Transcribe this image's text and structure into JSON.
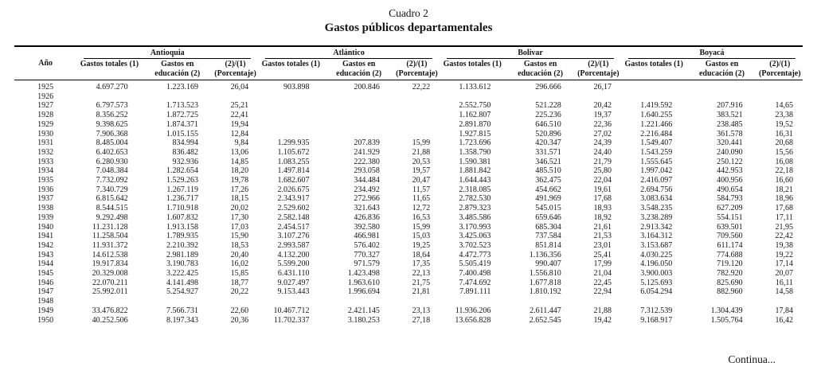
{
  "page": {
    "heading": "Cuadro 2",
    "title": "Gastos públicos departamentales",
    "footer_note": "Continua..."
  },
  "colors": {
    "background": "#ffffff",
    "text": "#141414",
    "rule": "#000000"
  },
  "table": {
    "year_header": "Año",
    "groups": [
      "Antioquia",
      "Atlántico",
      "Bolivar",
      "Boyacá"
    ],
    "subheaders": [
      "Gastos totales (1)",
      "Gastos en educación (2)",
      "(2)/(1) (Porcentaje)"
    ],
    "rows": [
      {
        "year": "1925",
        "values": [
          "4.697.270",
          "1.223.169",
          "26,04",
          "903.898",
          "200.846",
          "22,22",
          "1.133.612",
          "296.666",
          "26,17",
          "",
          "",
          ""
        ]
      },
      {
        "year": "1926",
        "values": [
          "",
          "",
          "",
          "",
          "",
          "",
          "",
          "",
          "",
          "",
          "",
          ""
        ]
      },
      {
        "year": "1927",
        "values": [
          "6.797.573",
          "1.713.523",
          "25,21",
          "",
          "",
          "",
          "2.552.750",
          "521.228",
          "20,42",
          "1.419.592",
          "207.916",
          "14,65"
        ]
      },
      {
        "year": "1928",
        "values": [
          "8.356.252",
          "1.872.725",
          "22,41",
          "",
          "",
          "",
          "1.162.807",
          "225.236",
          "19,37",
          "1.640.255",
          "383.521",
          "23,38"
        ]
      },
      {
        "year": "1929",
        "values": [
          "9.398.625",
          "1.874.371",
          "19,94",
          "",
          "",
          "",
          "2.891.870",
          "646.510",
          "22,36",
          "1.221.466",
          "238.485",
          "19,52"
        ]
      },
      {
        "year": "1930",
        "values": [
          "7.906.368",
          "1.015.155",
          "12,84",
          "",
          "",
          "",
          "1.927.815",
          "520.896",
          "27,02",
          "2.216.484",
          "361.578",
          "16,31"
        ]
      },
      {
        "year": "1931",
        "values": [
          "8.485.004",
          "834.994",
          "9,84",
          "1.299.935",
          "207.839",
          "15,99",
          "1.723.696",
          "420.347",
          "24,39",
          "1.549.407",
          "320.441",
          "20,68"
        ]
      },
      {
        "year": "1932",
        "values": [
          "6.402.653",
          "836.482",
          "13,06",
          "1.105.672",
          "241.929",
          "21,88",
          "1.358.790",
          "331.571",
          "24,40",
          "1.543.259",
          "240.090",
          "15,56"
        ]
      },
      {
        "year": "1933",
        "values": [
          "6.280.930",
          "932.936",
          "14,85",
          "1.083.255",
          "222.380",
          "20,53",
          "1.590.381",
          "346.521",
          "21,79",
          "1.555.645",
          "250.122",
          "16,08"
        ]
      },
      {
        "year": "1934",
        "values": [
          "7.048.384",
          "1.282.654",
          "18,20",
          "1.497.814",
          "293.058",
          "19,57",
          "1.881.842",
          "485.510",
          "25,80",
          "1.997.042",
          "442.953",
          "22,18"
        ]
      },
      {
        "year": "1935",
        "values": [
          "7.732.092",
          "1.529.263",
          "19,78",
          "1.682.607",
          "344.484",
          "20,47",
          "1.644.443",
          "362.475",
          "22,04",
          "2.416.097",
          "400.956",
          "16,60"
        ]
      },
      {
        "year": "1936",
        "values": [
          "7.340.729",
          "1.267.119",
          "17,26",
          "2.026.675",
          "234.492",
          "11,57",
          "2.318.085",
          "454.662",
          "19,61",
          "2.694.756",
          "490.654",
          "18,21"
        ]
      },
      {
        "year": "1937",
        "values": [
          "6.815.642",
          "1.236.717",
          "18,15",
          "2.343.917",
          "272.966",
          "11,65",
          "2.782.530",
          "491.969",
          "17,68",
          "3.083.634",
          "584.793",
          "18,96"
        ]
      },
      {
        "year": "1938",
        "values": [
          "8.544.515",
          "1.710.918",
          "20,02",
          "2.529.602",
          "321.643",
          "12,72",
          "2.879.323",
          "545.015",
          "18,93",
          "3.548.235",
          "627.209",
          "17,68"
        ]
      },
      {
        "year": "1939",
        "values": [
          "9.292.498",
          "1.607.832",
          "17,30",
          "2.582.148",
          "426.836",
          "16,53",
          "3.485.586",
          "659.646",
          "18,92",
          "3.238.289",
          "554.151",
          "17,11"
        ]
      },
      {
        "year": "1940",
        "values": [
          "11.231.128",
          "1.913.158",
          "17,03",
          "2.454.517",
          "392.580",
          "15,99",
          "3.170.993",
          "685.304",
          "21,61",
          "2.913.342",
          "639.501",
          "21,95"
        ]
      },
      {
        "year": "1941",
        "values": [
          "11.258.504",
          "1.789.935",
          "15,90",
          "3.107.276",
          "466.981",
          "15,03",
          "3.425.063",
          "737.584",
          "21,53",
          "3.164.312",
          "709.560",
          "22,42"
        ]
      },
      {
        "year": "1942",
        "values": [
          "11.931.372",
          "2.210.392",
          "18,53",
          "2.993.587",
          "576.402",
          "19,25",
          "3.702.523",
          "851.814",
          "23,01",
          "3.153.687",
          "611.174",
          "19,38"
        ]
      },
      {
        "year": "1943",
        "values": [
          "14.612.538",
          "2.981.189",
          "20,40",
          "4.132.200",
          "770.327",
          "18,64",
          "4.472.773",
          "1.136.356",
          "25,41",
          "4.030.225",
          "774.688",
          "19,22"
        ]
      },
      {
        "year": "1944",
        "values": [
          "19.917.834",
          "3.190.783",
          "16,02",
          "5.599.200",
          "971.579",
          "17,35",
          "5.505.419",
          "990.407",
          "17,99",
          "4.196.050",
          "719.120",
          "17,14"
        ]
      },
      {
        "year": "1945",
        "values": [
          "20.329.008",
          "3.222.425",
          "15,85",
          "6.431.110",
          "1.423.498",
          "22,13",
          "7.400.498",
          "1.556.810",
          "21,04",
          "3.900.003",
          "782.920",
          "20,07"
        ]
      },
      {
        "year": "1946",
        "values": [
          "22.070.211",
          "4.141.498",
          "18,77",
          "9.027.497",
          "1.963.610",
          "21,75",
          "7.474.692",
          "1.677.818",
          "22,45",
          "5.125.693",
          "825.690",
          "16,11"
        ]
      },
      {
        "year": "1947",
        "values": [
          "25.992.011",
          "5.254.927",
          "20,22",
          "9.153.443",
          "1.996.694",
          "21,81",
          "7.891.111",
          "1.810.192",
          "22,94",
          "6.054.294",
          "882.960",
          "14,58"
        ]
      },
      {
        "year": "1948",
        "values": [
          "",
          "",
          "",
          "",
          "",
          "",
          "",
          "",
          "",
          "",
          "",
          ""
        ]
      },
      {
        "year": "1949",
        "values": [
          "33.476.822",
          "7.566.731",
          "22,60",
          "10.467.712",
          "2.421.145",
          "23,13",
          "11.936.206",
          "2.611.447",
          "21,88",
          "7.312.539",
          "1.304.439",
          "17,84"
        ]
      },
      {
        "year": "1950",
        "values": [
          "40.252.506",
          "8.197.343",
          "20,36",
          "11.702.337",
          "3.180.253",
          "27,18",
          "13.656.828",
          "2.652.545",
          "19,42",
          "9.168.917",
          "1.505.764",
          "16,42"
        ]
      }
    ]
  }
}
